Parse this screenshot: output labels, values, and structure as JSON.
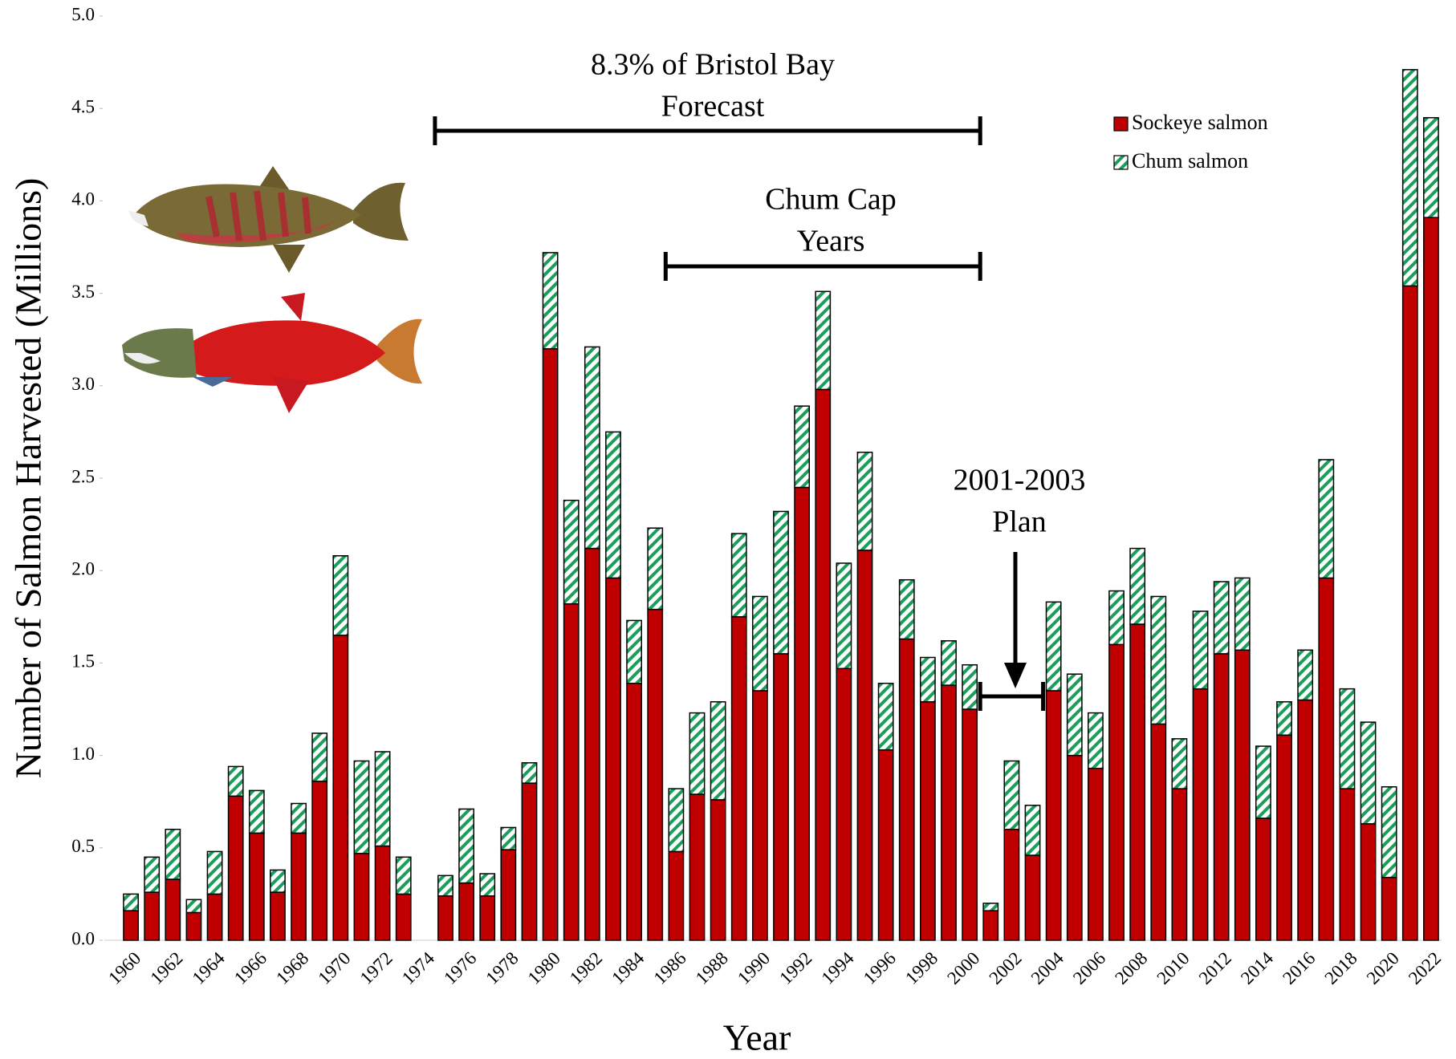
{
  "chart_data": {
    "type": "stacked_bar",
    "y_label": "Number of Salmon Harvested (Millions)",
    "x_label": "Year",
    "categories": [
      "1960",
      null,
      "1962",
      null,
      "1964",
      null,
      "1966",
      null,
      "1968",
      null,
      "1970",
      null,
      "1972",
      null,
      "1974",
      null,
      "1976",
      null,
      "1978",
      null,
      "1980",
      null,
      "1982",
      null,
      "1984",
      null,
      "1986",
      null,
      "1988",
      null,
      "1990",
      null,
      "1992",
      null,
      "1994",
      null,
      "1996",
      null,
      "1998",
      null,
      "2000",
      null,
      "2002",
      null,
      "2004",
      null,
      "2006",
      null,
      "2008",
      null,
      "2010",
      null,
      "2012",
      null,
      "2014",
      null,
      "2016",
      null,
      "2018",
      null,
      "2020",
      null,
      "2022"
    ],
    "series": [
      {
        "name": "Sockeye salmon",
        "color": "#c00000",
        "values": [
          0.16,
          0.26,
          0.33,
          0.15,
          0.25,
          0.78,
          0.58,
          0.26,
          0.58,
          0.86,
          1.65,
          0.47,
          0.51,
          0.25,
          null,
          0.24,
          0.31,
          0.24,
          0.49,
          0.85,
          3.2,
          1.82,
          2.12,
          1.96,
          1.39,
          1.79,
          0.48,
          0.79,
          0.76,
          1.75,
          1.35,
          1.55,
          2.45,
          2.98,
          1.47,
          2.11,
          1.03,
          1.63,
          1.29,
          1.38,
          1.25,
          0.16,
          0.6,
          0.46,
          1.35,
          1.0,
          0.93,
          1.6,
          1.71,
          1.17,
          0.82,
          1.36,
          1.55,
          1.57,
          0.66,
          1.11,
          1.3,
          1.96,
          0.82,
          0.63,
          0.34,
          3.54,
          3.91
        ]
      },
      {
        "name": "Chum salmon",
        "color": "#1a9e5a",
        "values": [
          0.09,
          0.19,
          0.27,
          0.07,
          0.23,
          0.16,
          0.23,
          0.12,
          0.16,
          0.26,
          0.43,
          0.5,
          0.51,
          0.2,
          null,
          0.11,
          0.4,
          0.12,
          0.12,
          0.11,
          0.52,
          0.56,
          1.09,
          0.79,
          0.34,
          0.44,
          0.34,
          0.44,
          0.53,
          0.45,
          0.51,
          0.77,
          0.44,
          0.53,
          0.57,
          0.53,
          0.36,
          0.32,
          0.24,
          0.24,
          0.24,
          0.04,
          0.37,
          0.27,
          0.48,
          0.44,
          0.3,
          0.29,
          0.41,
          0.69,
          0.27,
          0.42,
          0.39,
          0.39,
          0.39,
          0.18,
          0.27,
          0.64,
          0.54,
          0.55,
          0.49,
          1.17,
          0.54
        ]
      }
    ],
    "ylim": [
      0,
      5
    ],
    "yticks": [
      {
        "value": 0,
        "label": "0.0"
      },
      0.5,
      {
        "value": 1,
        "label": "1.0"
      },
      1.5,
      {
        "value": 2,
        "label": "2.0"
      },
      2.5,
      {
        "value": 3,
        "label": "3.0"
      },
      3.5,
      {
        "value": 4,
        "label": "4.0"
      },
      4.5,
      {
        "value": 5,
        "label": "5.0"
      }
    ],
    "grid": false,
    "legend": "upper-right",
    "annotations": [
      {
        "lines": [
          "8.3% of Bristol Bay",
          "Forecast"
        ]
      },
      {
        "lines": [
          "Chum Cap",
          "Years"
        ]
      },
      {
        "lines": [
          "2001-2003",
          "Plan"
        ]
      }
    ]
  }
}
